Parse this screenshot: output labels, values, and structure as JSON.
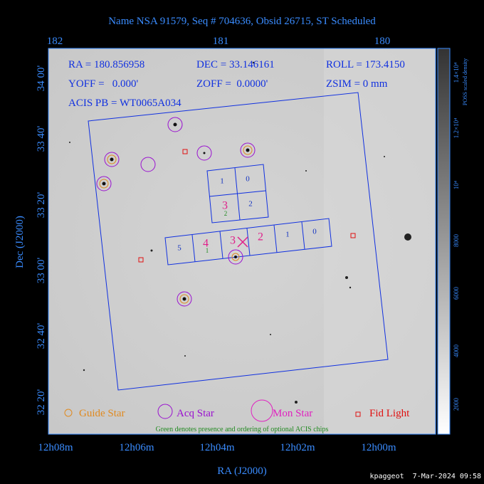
{
  "header": {
    "title": "Name NSA 91579, Seq # 704636, Obsid 26715, ST Scheduled"
  },
  "axes": {
    "top_ticks": [
      "182",
      "181",
      "180"
    ],
    "left_ticks": [
      "34 00'",
      "33 40'",
      "33 20'",
      "33 00'",
      "32 40'",
      "32 20'"
    ],
    "bottom_ticks": [
      "12h08m",
      "12h06m",
      "12h04m",
      "12h02m",
      "12h00m"
    ],
    "x_label": "RA (J2000)",
    "y_label": "Dec (J2000)"
  },
  "colorbar": {
    "label": "POSS scaled density",
    "ticks": [
      "2000",
      "4000",
      "6000",
      "8000",
      "10⁴",
      "1.2×10⁴",
      "1.4×10⁴"
    ]
  },
  "info": {
    "ra": "RA = 180.856958",
    "dec": "DEC = 33.146161",
    "roll": "ROLL = 173.4150",
    "yoff": "YOFF =   0.000'",
    "zoff": "ZOFF =  0.0000'",
    "zsim": "ZSIM = 0 mm",
    "acis_pb": "ACIS PB = WT0065A034"
  },
  "chips": {
    "top": [
      "1",
      "0",
      "3",
      "2"
    ],
    "bottom": [
      "5",
      "4",
      "3",
      "2",
      "1",
      "0"
    ],
    "optional": [
      "1",
      "2"
    ]
  },
  "legend": {
    "guide": "Guide Star",
    "acq": "Acq Star",
    "mon": "Mon Star",
    "fid": "Fid Light",
    "note": "Green denotes presence and ordering of optional ACIS chips"
  },
  "footer": "kpaggeot  7-Mar-2024 09:58"
}
